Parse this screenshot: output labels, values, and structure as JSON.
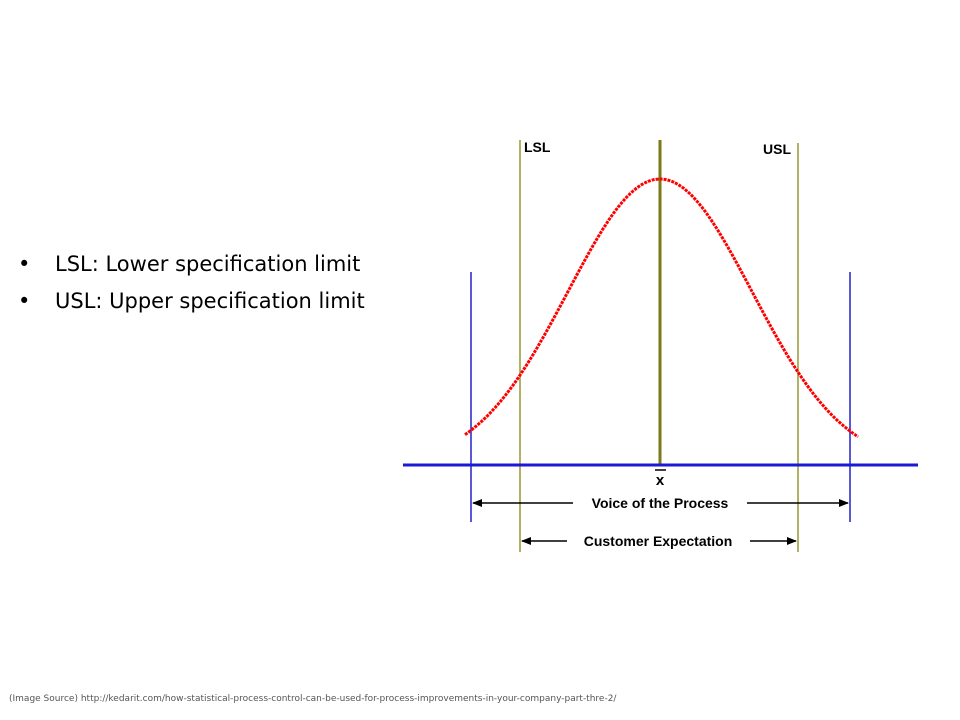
{
  "bullets": [
    {
      "text": "LSL: Lower specification limit"
    },
    {
      "text": "USL: Upper specification limit"
    }
  ],
  "diagram": {
    "lsl_label": "LSL",
    "usl_label": "USL",
    "mean_symbol": "x",
    "process_span_label": "Voice of the Process",
    "spec_span_label": "Customer Expectation",
    "colors": {
      "curve": "#ff0000",
      "process_limits": "#2222cc",
      "spec_limits": "#999933",
      "baseline": "#1a1ad6",
      "mean_line": "#7a7a1a",
      "text": "#000000"
    }
  },
  "source": {
    "text": "(Image Source) http://kedarit.com/how-statistical-process-control-can-be-used-for-process-improvements-in-your-company-part-thre-2/"
  }
}
